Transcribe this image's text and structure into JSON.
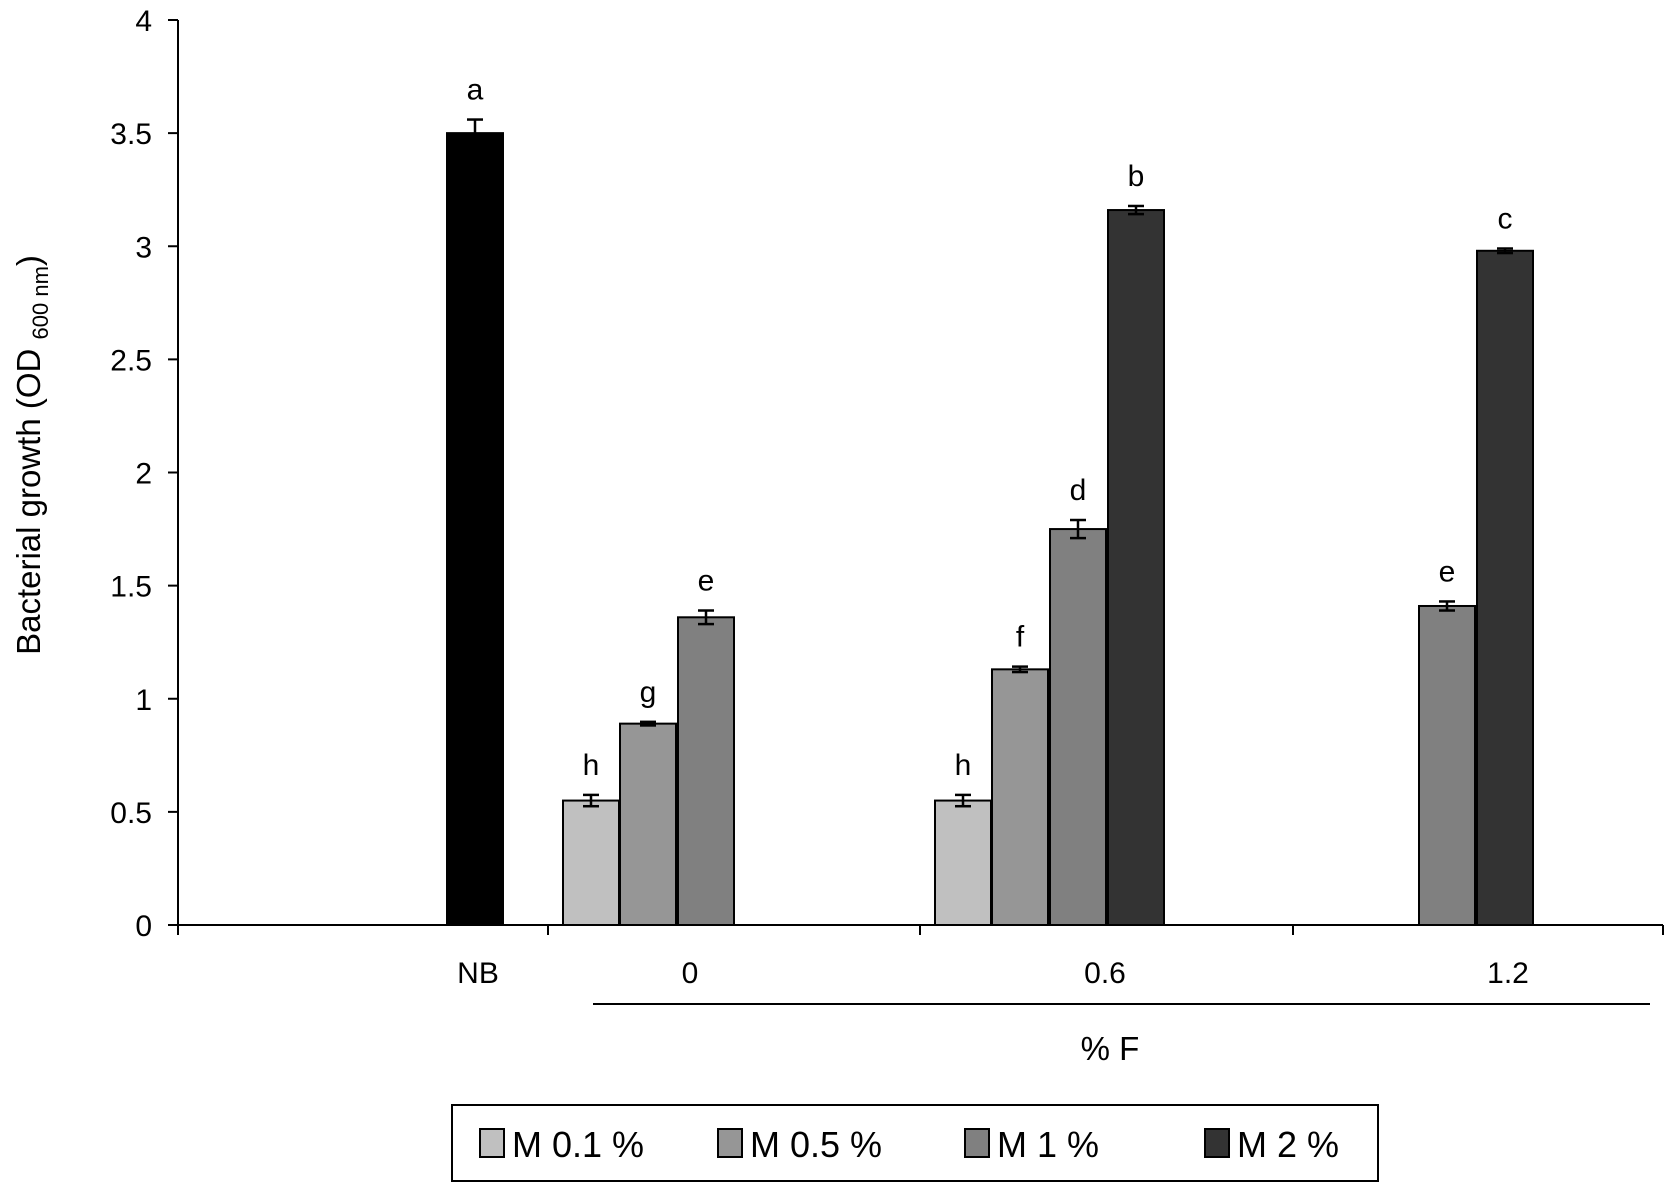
{
  "chart_data": {
    "type": "bar",
    "ylabel": "Bacterial growth (OD",
    "ylabel_sub": "600 nm",
    "ylabel_close": ")",
    "ylim": [
      0,
      4
    ],
    "yticks": [
      {
        "value": 0,
        "label": "0"
      },
      {
        "value": 0.5,
        "label": "0.5"
      },
      {
        "value": 1,
        "label": "1"
      },
      {
        "value": 1.5,
        "label": "1.5"
      },
      {
        "value": 2,
        "label": "2"
      },
      {
        "value": 2.5,
        "label": "2.5"
      },
      {
        "value": 3,
        "label": "3"
      },
      {
        "value": 3.5,
        "label": "3.5"
      },
      {
        "value": 4,
        "label": "4"
      }
    ],
    "categories": [
      "NB",
      "0",
      "0.6",
      "1.2"
    ],
    "group_label": "% F",
    "legend_position": "bottom",
    "series": [
      {
        "name": "M 0.1 %",
        "color": "#c0c0c0"
      },
      {
        "name": "M 0.5 %",
        "color": "#969696"
      },
      {
        "name": "M 1 %",
        "color": "#808080"
      },
      {
        "name": "M 2 %",
        "color": "#333333"
      }
    ],
    "control_color": "#000000",
    "bars": [
      {
        "category": "NB",
        "series": null,
        "value": 3.5,
        "error": 0.06,
        "sig": "a"
      },
      {
        "category": "0",
        "series": "M 0.1 %",
        "value": 0.55,
        "error": 0.025,
        "sig": "h"
      },
      {
        "category": "0",
        "series": "M 0.5 %",
        "value": 0.89,
        "error": 0.008,
        "sig": "g"
      },
      {
        "category": "0",
        "series": "M 1 %",
        "value": 1.36,
        "error": 0.03,
        "sig": "e"
      },
      {
        "category": "0.6",
        "series": "M 0.1 %",
        "value": 0.55,
        "error": 0.025,
        "sig": "h"
      },
      {
        "category": "0.6",
        "series": "M 0.5 %",
        "value": 1.13,
        "error": 0.012,
        "sig": "f"
      },
      {
        "category": "0.6",
        "series": "M 1 %",
        "value": 1.75,
        "error": 0.04,
        "sig": "d"
      },
      {
        "category": "0.6",
        "series": "M 2 %",
        "value": 3.16,
        "error": 0.018,
        "sig": "b"
      },
      {
        "category": "1.2",
        "series": "M 1 %",
        "value": 1.41,
        "error": 0.02,
        "sig": "e"
      },
      {
        "category": "1.2",
        "series": "M 2 %",
        "value": 2.98,
        "error": 0.01,
        "sig": "c"
      }
    ]
  }
}
